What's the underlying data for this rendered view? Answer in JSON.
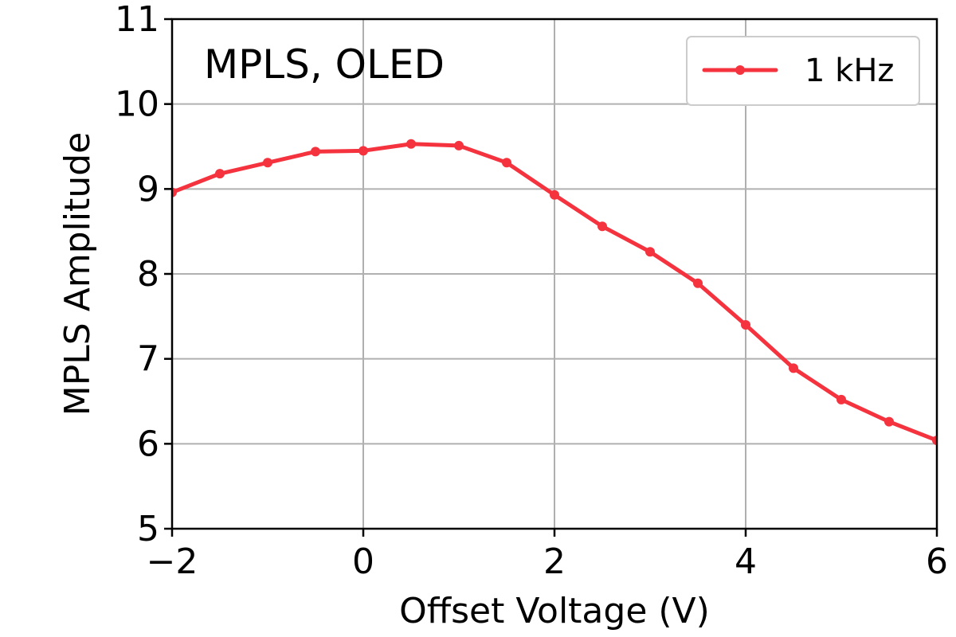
{
  "chart_data": {
    "type": "line",
    "title": "",
    "annotation": "MPLS, OLED",
    "xlabel": "Offset Voltage (V)",
    "ylabel": "MPLS Amplitude",
    "xlim": [
      -2,
      6
    ],
    "ylim": [
      5,
      11
    ],
    "xticks": [
      -2,
      0,
      2,
      4,
      6
    ],
    "xtick_labels": [
      "−2",
      "0",
      "2",
      "4",
      "6"
    ],
    "yticks": [
      5,
      6,
      7,
      8,
      9,
      10,
      11
    ],
    "ytick_labels": [
      "5",
      "6",
      "7",
      "8",
      "9",
      "10",
      "11"
    ],
    "grid": true,
    "legend_position": "top-right",
    "series": [
      {
        "name": "1 kHz",
        "color": "#f5333f",
        "marker": "circle",
        "x": [
          -2,
          -1.5,
          -1,
          -0.5,
          0,
          0.5,
          1,
          1.5,
          2,
          2.5,
          3,
          3.5,
          4,
          4.5,
          5,
          5.5,
          6
        ],
        "y": [
          8.96,
          9.18,
          9.31,
          9.44,
          9.45,
          9.53,
          9.51,
          9.31,
          8.93,
          8.56,
          8.26,
          7.89,
          7.4,
          6.89,
          6.52,
          6.26,
          6.04
        ]
      }
    ]
  }
}
